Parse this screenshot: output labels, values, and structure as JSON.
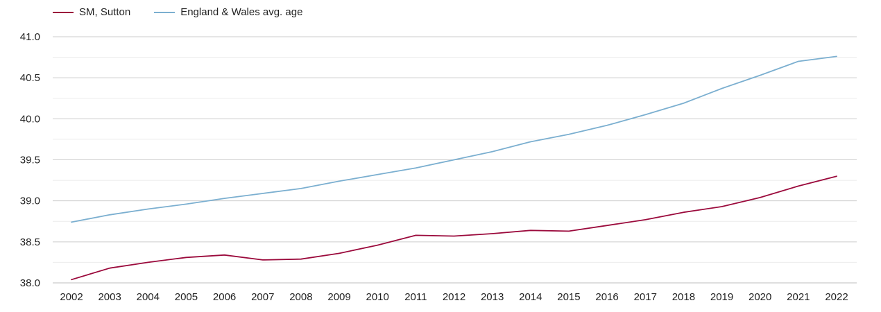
{
  "chart_data": {
    "type": "line",
    "title": "",
    "xlabel": "",
    "ylabel": "",
    "x": [
      2002,
      2003,
      2004,
      2005,
      2006,
      2007,
      2008,
      2009,
      2010,
      2011,
      2012,
      2013,
      2014,
      2015,
      2016,
      2017,
      2018,
      2019,
      2020,
      2021,
      2022
    ],
    "ylim": [
      38.0,
      41.0
    ],
    "yticks": [
      "38.0",
      "38.5",
      "39.0",
      "39.5",
      "40.0",
      "40.5",
      "41.0"
    ],
    "grid": true,
    "legend_position": "top-left",
    "series": [
      {
        "name": "SM, Sutton",
        "color": "#9b0a3c",
        "values": [
          38.04,
          38.18,
          38.25,
          38.31,
          38.34,
          38.28,
          38.29,
          38.36,
          38.46,
          38.58,
          38.57,
          38.6,
          38.64,
          38.63,
          38.7,
          38.77,
          38.86,
          38.93,
          39.04,
          39.18,
          39.3
        ]
      },
      {
        "name": "England & Wales avg. age",
        "color": "#7bafd0",
        "values": [
          38.74,
          38.83,
          38.9,
          38.96,
          39.03,
          39.09,
          39.15,
          39.24,
          39.32,
          39.4,
          39.5,
          39.6,
          39.72,
          39.81,
          39.92,
          40.05,
          40.19,
          40.37,
          40.53,
          40.7,
          40.76
        ]
      }
    ]
  }
}
